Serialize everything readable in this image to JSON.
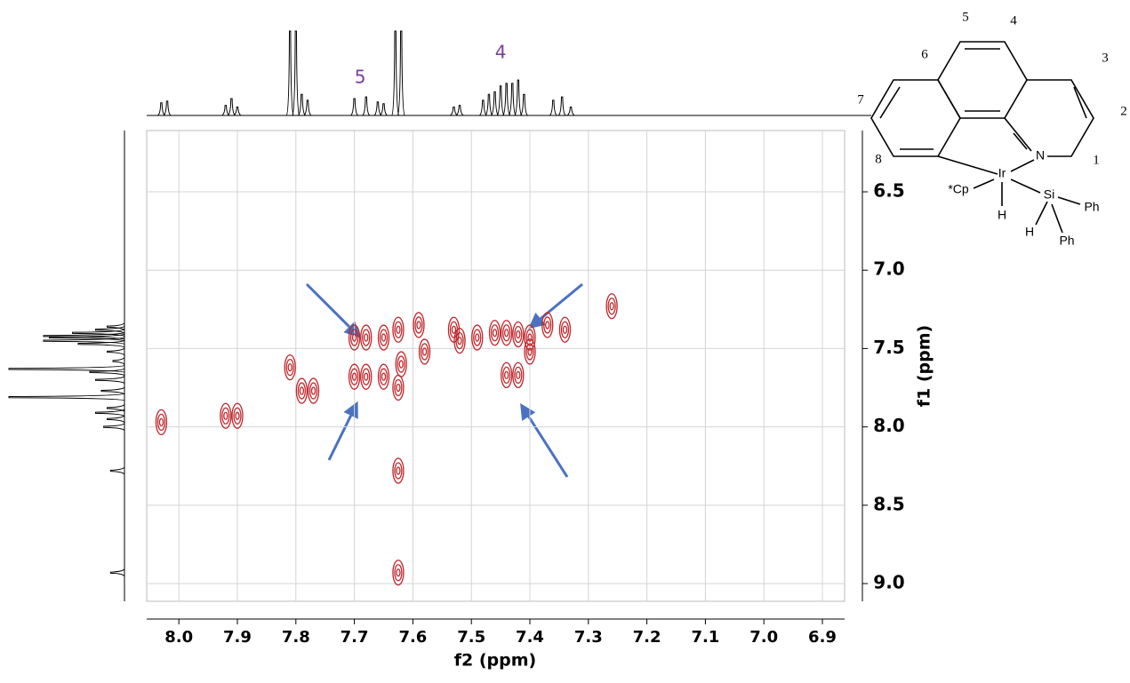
{
  "chart_data": {
    "type": "cosy",
    "xlabel": "f2 (ppm)",
    "ylabel": "f1 (ppm)",
    "xlim": [
      8.055,
      6.862
    ],
    "xticks": [
      {
        "value": 8,
        "label": "8.0"
      },
      7.9,
      7.8,
      7.7,
      7.6,
      7.5,
      7.4,
      7.3,
      7.2,
      7.1,
      {
        "value": 7,
        "label": "7.0"
      },
      6.9
    ],
    "ylim": [
      6.109,
      9.113
    ],
    "yticks": [
      6.5,
      {
        "value": 7,
        "label": "7.0"
      },
      7.5,
      {
        "value": 8,
        "label": "8.0"
      },
      8.5,
      {
        "value": 9,
        "label": "9.0"
      }
    ],
    "grid": true,
    "contour_color": "#c0262b",
    "peaks_f2": [
      8.03,
      7.92,
      7.9,
      7.81,
      7.79,
      7.77,
      7.7,
      7.68,
      7.7,
      7.68,
      7.65,
      7.65,
      7.625,
      7.62,
      7.625,
      7.625,
      7.625,
      7.59,
      7.58,
      7.53,
      7.52,
      7.49,
      7.46,
      7.44,
      7.42,
      7.4,
      7.44,
      7.42,
      7.4,
      7.37,
      7.34,
      7.26
    ],
    "peaks_f1": [
      7.97,
      7.93,
      7.93,
      7.62,
      7.77,
      7.77,
      7.43,
      7.43,
      7.68,
      7.68,
      7.43,
      7.68,
      7.38,
      7.6,
      7.75,
      8.28,
      8.93,
      7.35,
      7.52,
      7.38,
      7.45,
      7.43,
      7.4,
      7.4,
      7.41,
      7.43,
      7.67,
      7.67,
      7.52,
      7.35,
      7.38,
      7.23
    ],
    "top_projection": {
      "ppm": [
        8.03,
        8.02,
        7.92,
        7.91,
        7.9,
        7.81,
        7.8,
        7.79,
        7.78,
        7.7,
        7.68,
        7.66,
        7.65,
        7.63,
        7.62,
        7.53,
        7.52,
        7.48,
        7.47,
        7.46,
        7.45,
        7.44,
        7.43,
        7.42,
        7.41,
        7.36,
        7.345,
        7.33
      ],
      "intensity": [
        15,
        17,
        12,
        20,
        10,
        100,
        100,
        25,
        18,
        20,
        22,
        16,
        14,
        100,
        100,
        10,
        12,
        18,
        25,
        28,
        35,
        38,
        38,
        42,
        25,
        18,
        22,
        10
      ],
      "ylim": [
        0,
        100
      ]
    },
    "left_projection": {
      "ppm": [
        7.36,
        7.38,
        7.4,
        7.42,
        7.43,
        7.45,
        7.47,
        7.52,
        7.58,
        7.63,
        7.65,
        7.7,
        7.77,
        7.81,
        7.88,
        7.91,
        7.95,
        8.0,
        8.28,
        8.93
      ],
      "intensity": [
        15,
        25,
        45,
        70,
        65,
        70,
        40,
        15,
        10,
        100,
        30,
        25,
        20,
        100,
        15,
        25,
        15,
        18,
        12,
        12
      ],
      "xlim": [
        0,
        100
      ]
    },
    "annotations": [
      {
        "text": "5",
        "x": 7.69
      },
      {
        "text": "4",
        "x": 7.45
      }
    ],
    "annotation_color": "#7a3d9e"
  },
  "structure": {
    "atoms": [
      "1",
      "2",
      "3",
      "4",
      "5",
      "6",
      "7",
      "8",
      "N",
      "Ir",
      "Si",
      "H",
      "H",
      "Ph",
      "Ph",
      "*Cp"
    ]
  }
}
